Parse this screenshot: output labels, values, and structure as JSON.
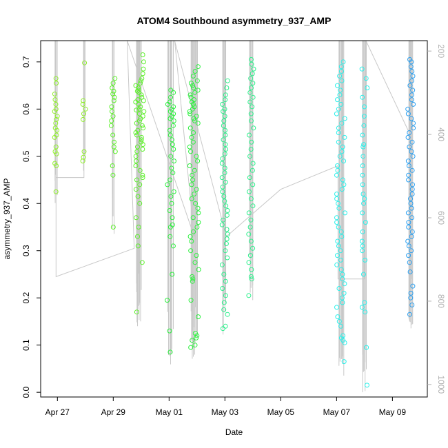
{
  "chart_data": {
    "type": "scatter",
    "title": "ATOM4 Southbound asymmetry_937_AMP",
    "xlabel": "Date",
    "ylabel": "asymmetry_937_AMP",
    "x_ticks": [
      "Apr 27",
      "Apr 29",
      "May 01",
      "May 03",
      "May 05",
      "May 07",
      "May 09"
    ],
    "x_tick_days": [
      0,
      2,
      4,
      6,
      8,
      10,
      12
    ],
    "xlim_days": [
      -0.6,
      13.25
    ],
    "ylim": [
      -0.01,
      0.745
    ],
    "y_ticks": [
      0.0,
      0.1,
      0.2,
      0.3,
      0.4,
      0.5,
      0.6,
      0.7
    ],
    "y2_ticks": [
      200,
      400,
      600,
      800,
      1000
    ],
    "y2lim": [
      1030,
      175
    ],
    "grid": false,
    "legend": "none",
    "series": [
      {
        "color": "#8ff02a",
        "clusters": [
          {
            "x": -0.05,
            "xspread": 0.06,
            "points": [
              0.665,
              0.655,
              0.632,
              0.62,
              0.61,
              0.6,
              0.595,
              0.585,
              0.578,
              0.57,
              0.56,
              0.555,
              0.545,
              0.54,
              0.52,
              0.51,
              0.505,
              0.485,
              0.48,
              0.425
            ]
          },
          {
            "x": 0.95,
            "xspread": 0.06,
            "points": [
              0.698,
              0.618,
              0.61,
              0.6,
              0.59,
              0.578,
              0.51,
              0.498,
              0.49
            ]
          }
        ]
      },
      {
        "color": "#5cf02a",
        "clusters": [
          {
            "x": 2.0,
            "xspread": 0.08,
            "points": [
              0.665,
              0.655,
              0.645,
              0.638,
              0.632,
              0.625,
              0.618,
              0.605,
              0.595,
              0.585,
              0.575,
              0.565,
              0.545,
              0.53,
              0.52,
              0.51,
              0.48,
              0.46,
              0.35
            ]
          },
          {
            "x": 2.95,
            "xspread": 0.15,
            "points": [
              0.715,
              0.7,
              0.685,
              0.675,
              0.665,
              0.66,
              0.655,
              0.65,
              0.645,
              0.64,
              0.638,
              0.635,
              0.63,
              0.625,
              0.62,
              0.618,
              0.615,
              0.61,
              0.605,
              0.6,
              0.598,
              0.595,
              0.59,
              0.585,
              0.58,
              0.575,
              0.57,
              0.565,
              0.56,
              0.555,
              0.55,
              0.545,
              0.54,
              0.535,
              0.53,
              0.525,
              0.52,
              0.515,
              0.51,
              0.5,
              0.49,
              0.48,
              0.47,
              0.46,
              0.455,
              0.45,
              0.44,
              0.43,
              0.415,
              0.4,
              0.37,
              0.35,
              0.33,
              0.31,
              0.275,
              0.17
            ]
          }
        ]
      },
      {
        "color": "#2af03c",
        "clusters": [
          {
            "x": 4.05,
            "xspread": 0.13,
            "points": [
              0.64,
              0.635,
              0.625,
              0.615,
              0.61,
              0.605,
              0.6,
              0.595,
              0.59,
              0.585,
              0.58,
              0.575,
              0.565,
              0.555,
              0.545,
              0.535,
              0.525,
              0.515,
              0.5,
              0.49,
              0.475,
              0.465,
              0.45,
              0.44,
              0.425,
              0.415,
              0.4,
              0.385,
              0.37,
              0.355,
              0.35,
              0.33,
              0.31,
              0.25,
              0.195,
              0.13,
              0.085
            ]
          },
          {
            "x": 4.9,
            "xspread": 0.17,
            "points": [
              0.69,
              0.68,
              0.67,
              0.66,
              0.655,
              0.65,
              0.645,
              0.64,
              0.635,
              0.63,
              0.625,
              0.62,
              0.615,
              0.61,
              0.605,
              0.6,
              0.595,
              0.59,
              0.585,
              0.58,
              0.575,
              0.57,
              0.56,
              0.55,
              0.54,
              0.53,
              0.52,
              0.51,
              0.5,
              0.49,
              0.48,
              0.47,
              0.46,
              0.45,
              0.44,
              0.43,
              0.42,
              0.41,
              0.4,
              0.39,
              0.38,
              0.37,
              0.36,
              0.35,
              0.34,
              0.33,
              0.32,
              0.3,
              0.29,
              0.275,
              0.26,
              0.245,
              0.24,
              0.235,
              0.195,
              0.16,
              0.125,
              0.12,
              0.115,
              0.11,
              0.1,
              0.095
            ]
          }
        ]
      },
      {
        "color": "#2af08a",
        "clusters": [
          {
            "x": 6.0,
            "xspread": 0.1,
            "points": [
              0.66,
              0.645,
              0.63,
              0.62,
              0.61,
              0.6,
              0.595,
              0.585,
              0.575,
              0.565,
              0.555,
              0.545,
              0.535,
              0.525,
              0.515,
              0.505,
              0.495,
              0.485,
              0.475,
              0.465,
              0.455,
              0.445,
              0.435,
              0.425,
              0.415,
              0.405,
              0.395,
              0.385,
              0.375,
              0.365,
              0.355,
              0.345,
              0.335,
              0.325,
              0.315,
              0.3,
              0.285,
              0.27,
              0.25,
              0.235,
              0.22,
              0.205,
              0.19,
              0.175,
              0.165,
              0.14,
              0.135
            ]
          },
          {
            "x": 6.95,
            "xspread": 0.1,
            "points": [
              0.705,
              0.695,
              0.685,
              0.675,
              0.665,
              0.655,
              0.645,
              0.635,
              0.625,
              0.615,
              0.605,
              0.59,
              0.575,
              0.56,
              0.545,
              0.53,
              0.515,
              0.5,
              0.485,
              0.47,
              0.455,
              0.44,
              0.425,
              0.41,
              0.395,
              0.38,
              0.365,
              0.35,
              0.335,
              0.32,
              0.305,
              0.29,
              0.275,
              0.26,
              0.245,
              0.24,
              0.205
            ]
          }
        ]
      },
      {
        "color": "#2af0ea",
        "clusters": [
          {
            "x": 10.15,
            "xspread": 0.15,
            "points": [
              0.7,
              0.69,
              0.68,
              0.67,
              0.66,
              0.65,
              0.64,
              0.63,
              0.62,
              0.61,
              0.6,
              0.59,
              0.58,
              0.57,
              0.56,
              0.55,
              0.54,
              0.53,
              0.52,
              0.51,
              0.5,
              0.49,
              0.48,
              0.47,
              0.46,
              0.45,
              0.44,
              0.43,
              0.42,
              0.41,
              0.4,
              0.39,
              0.38,
              0.37,
              0.36,
              0.35,
              0.34,
              0.33,
              0.32,
              0.31,
              0.3,
              0.29,
              0.28,
              0.27,
              0.26,
              0.25,
              0.24,
              0.23,
              0.22,
              0.21,
              0.2,
              0.19,
              0.18,
              0.16,
              0.15,
              0.14,
              0.12,
              0.115,
              0.11,
              0.105,
              0.065
            ]
          },
          {
            "x": 11.0,
            "xspread": 0.1,
            "points": [
              0.685,
              0.665,
              0.645,
              0.625,
              0.605,
              0.585,
              0.565,
              0.545,
              0.525,
              0.52,
              0.5,
              0.48,
              0.46,
              0.44,
              0.42,
              0.41,
              0.4,
              0.38,
              0.36,
              0.34,
              0.32,
              0.31,
              0.3,
              0.28,
              0.25,
              0.19,
              0.18,
              0.17,
              0.095,
              0.015
            ]
          }
        ]
      },
      {
        "color": "#2a9ff0",
        "clusters": [
          {
            "x": 12.65,
            "xspread": 0.1,
            "points": [
              0.705,
              0.7,
              0.69,
              0.68,
              0.67,
              0.66,
              0.65,
              0.64,
              0.63,
              0.62,
              0.61,
              0.6,
              0.59,
              0.58,
              0.57,
              0.56,
              0.55,
              0.54,
              0.53,
              0.52,
              0.51,
              0.5,
              0.49,
              0.48,
              0.47,
              0.46,
              0.45,
              0.44,
              0.43,
              0.42,
              0.41,
              0.4,
              0.39,
              0.38,
              0.37,
              0.36,
              0.35,
              0.34,
              0.33,
              0.32,
              0.31,
              0.3,
              0.29,
              0.275,
              0.255,
              0.225,
              0.21,
              0.2,
              0.185,
              0.165
            ]
          }
        ]
      }
    ]
  }
}
